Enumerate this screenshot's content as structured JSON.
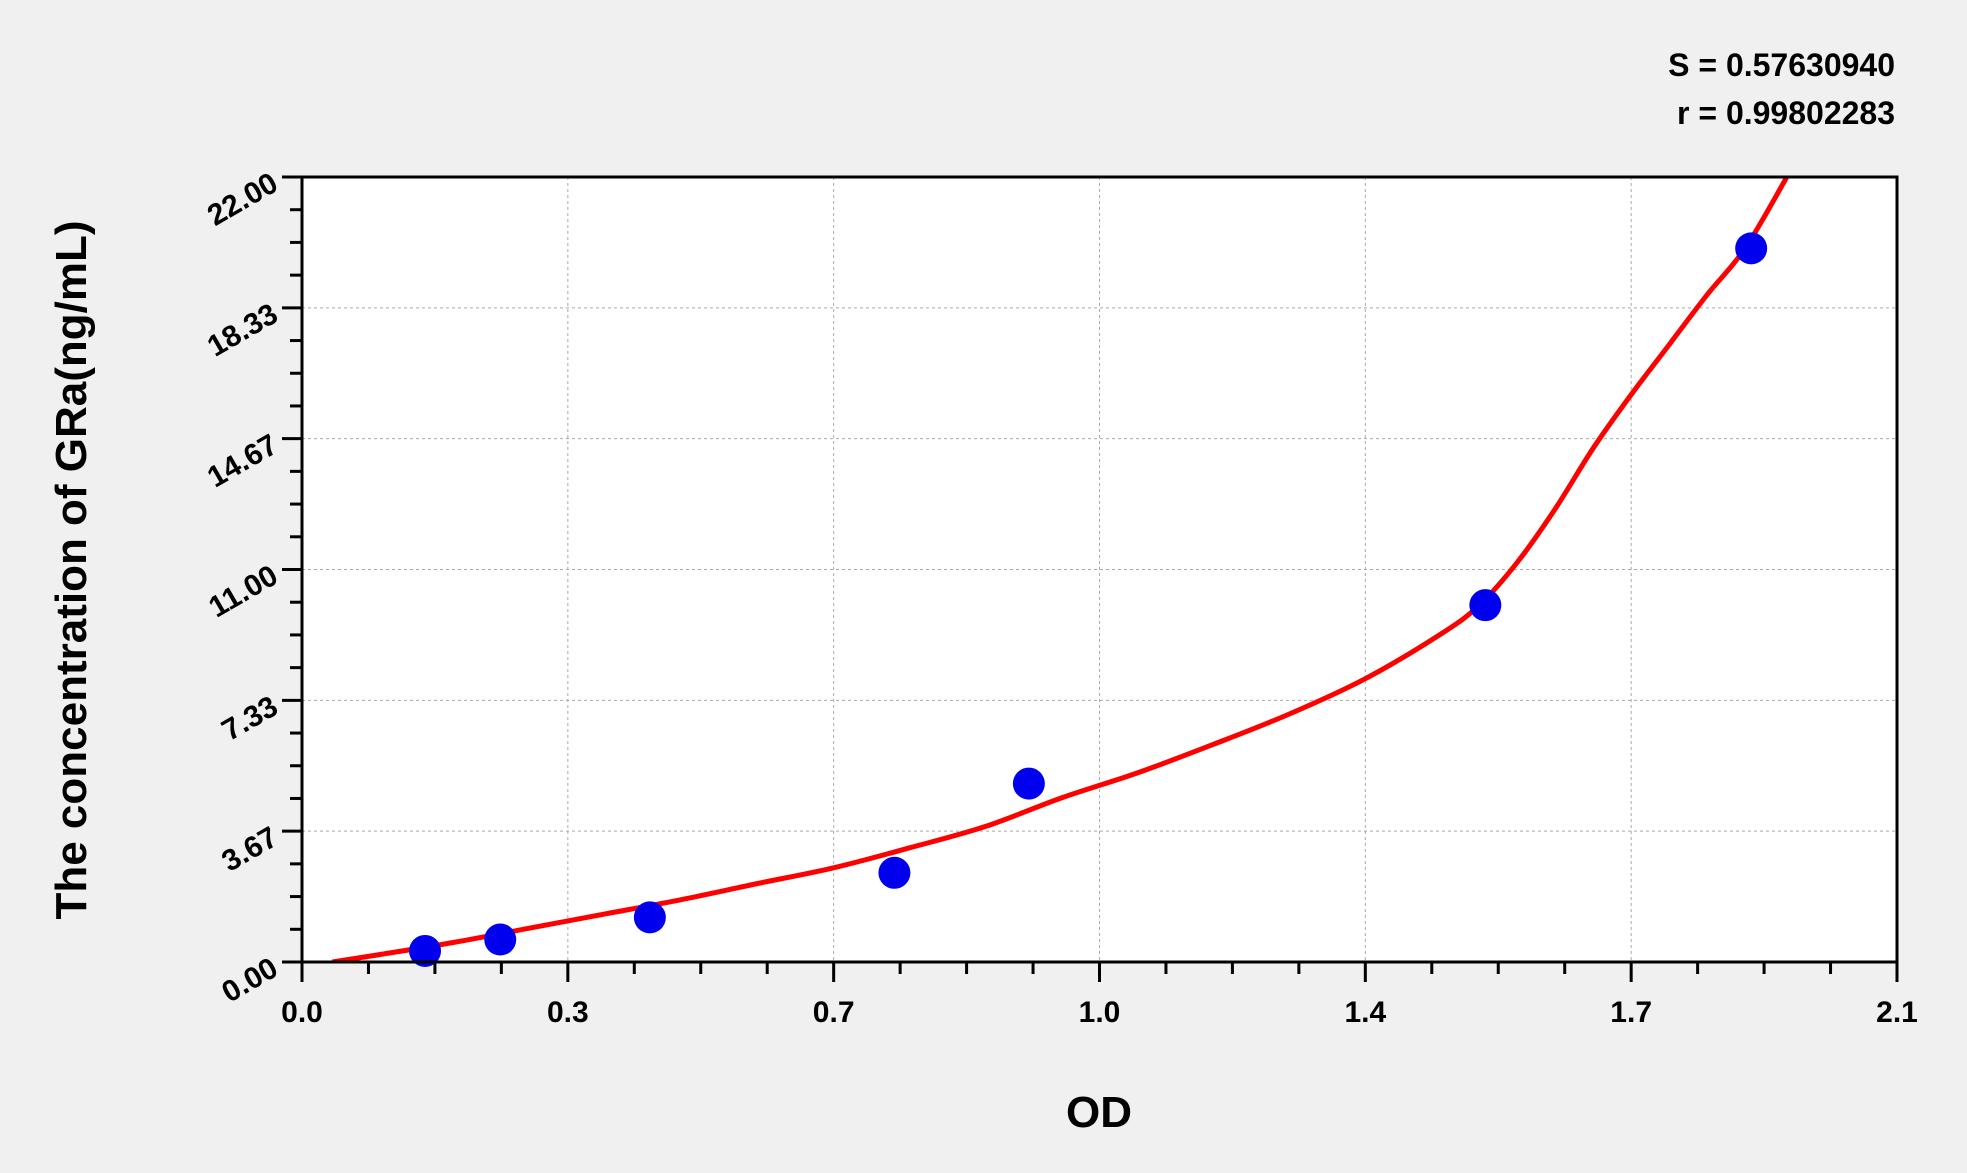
{
  "chart_data": {
    "type": "scatter",
    "title": "",
    "xlabel": "OD",
    "ylabel": "The concentration of GRa(ng/mL)",
    "xlim": [
      0,
      2.1
    ],
    "ylim": [
      0,
      22
    ],
    "x_ticks": [
      0,
      0.35,
      0.7,
      1.05,
      1.4,
      1.75,
      2.1
    ],
    "x_tick_labels": [
      "0.0",
      "0.3",
      "0.7",
      "1.0",
      "1.4",
      "1.7",
      "2.1"
    ],
    "y_ticks": [
      0,
      3.667,
      7.333,
      11,
      14.667,
      18.333,
      22
    ],
    "y_tick_labels": [
      "0.00",
      "3.67",
      "7.33",
      "11.00",
      "14.67",
      "18.33",
      "22.00"
    ],
    "grid": true,
    "annotations": [
      "S = 0.57630940",
      "r = 0.99802283"
    ],
    "series": [
      {
        "kind": "points",
        "color": "#0000ee",
        "x": [
          0.162,
          0.261,
          0.458,
          0.78,
          0.957,
          1.558,
          1.908
        ],
        "y": [
          0.31,
          0.63,
          1.25,
          2.5,
          5.0,
          10.0,
          20.0
        ]
      },
      {
        "kind": "fit-curve",
        "color": "#ff0000",
        "x": [
          0.04,
          0.1,
          0.2,
          0.3,
          0.4,
          0.5,
          0.6,
          0.7,
          0.8,
          0.9,
          1.0,
          1.1,
          1.2,
          1.3,
          1.4,
          1.5,
          1.55,
          1.6,
          1.65,
          1.7,
          1.75,
          1.8,
          1.85,
          1.9,
          1.955
        ],
        "y": [
          0,
          0.2,
          0.55,
          0.95,
          1.35,
          1.75,
          2.2,
          2.64,
          3.2,
          3.8,
          4.6,
          5.3,
          6.1,
          6.95,
          7.94,
          9.2,
          10.0,
          11.2,
          12.7,
          14.4,
          15.9,
          17.3,
          18.7,
          20.0,
          22.0
        ]
      }
    ]
  }
}
